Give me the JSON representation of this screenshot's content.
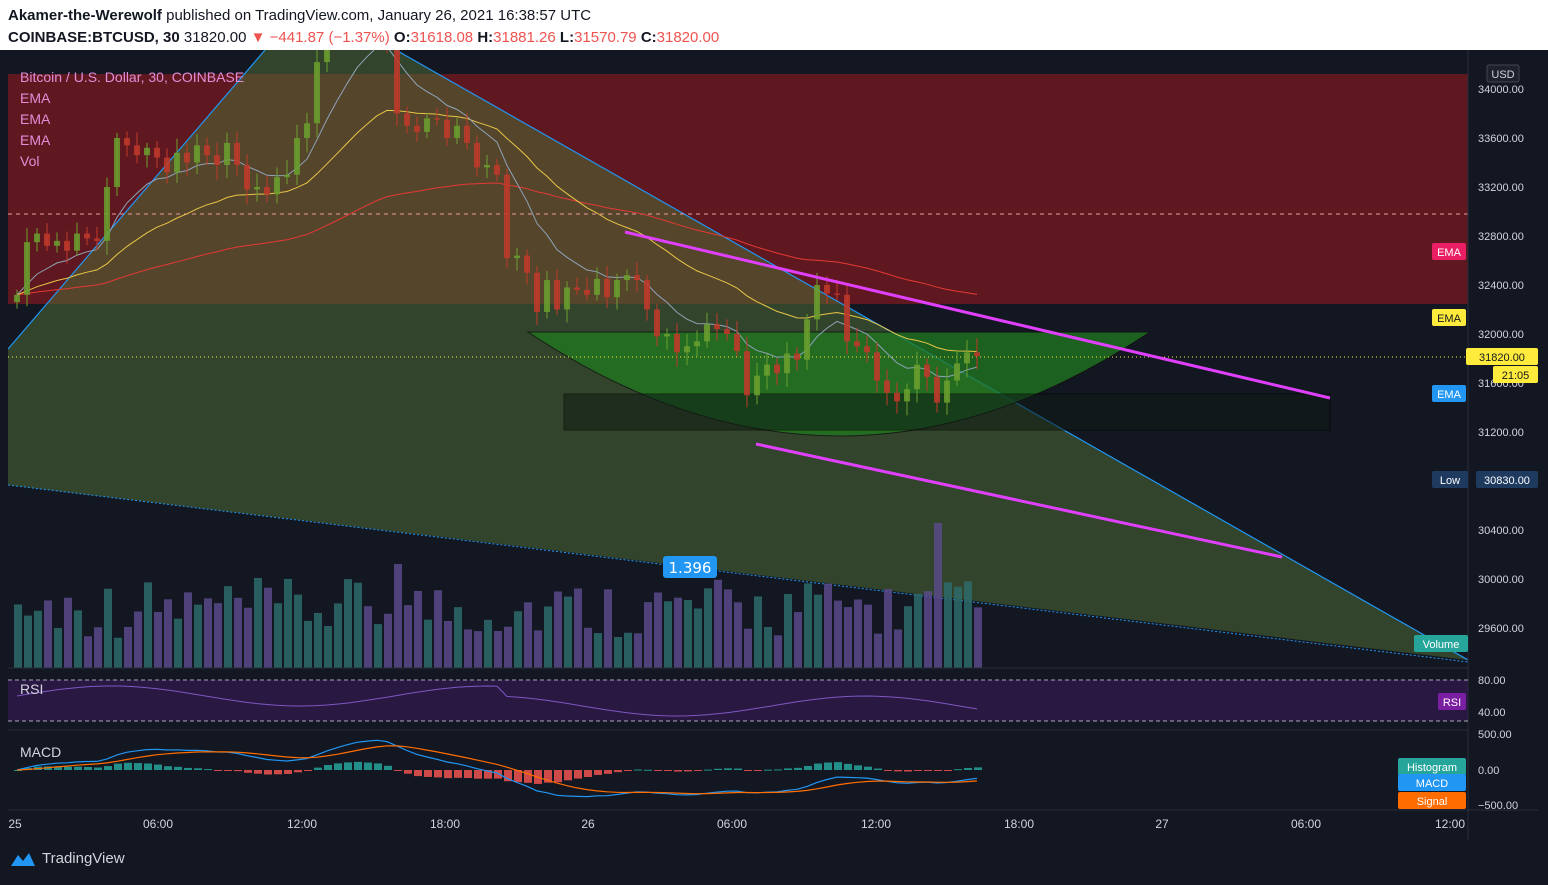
{
  "header": {
    "author": "Akamer-the-Werewolf",
    "published_text": "published on TradingView.com, January 26, 2021 16:38:57 UTC",
    "symbol": "COINBASE:BTCUSD, 30",
    "last": "31820.00",
    "change": "−441.87 (−1.37%)",
    "o_label": "O:",
    "o": "31618.08",
    "h_label": "H:",
    "h": "31881.26",
    "l_label": "L:",
    "l": "31570.79",
    "c_label": "C:",
    "c": "31820.00"
  },
  "legend": {
    "title": "Bitcoin / U.S. Dollar, 30, COINBASE",
    "ema1": "EMA",
    "ema2": "EMA",
    "ema3": "EMA",
    "vol": "Vol"
  },
  "price_scale": {
    "currency": "USD",
    "ticks": [
      "34000.00",
      "33600.00",
      "33200.00",
      "32800.00",
      "32400.00",
      "32000.00",
      "31600.00",
      "31200.00",
      "30400.00",
      "30000.00",
      "29600.00"
    ],
    "tags": [
      {
        "label": "EMA",
        "color": "#e91e63"
      },
      {
        "label": "EMA",
        "color": "#ffeb3b"
      },
      {
        "label": "31820.00",
        "color": "#ffeb3b"
      },
      {
        "label": "21:05",
        "color": "#ffeb3b"
      },
      {
        "label": "EMA",
        "color": "#2196f3"
      },
      {
        "label": "Low",
        "color": "#1e3a5f"
      },
      {
        "label": "30830.00",
        "color": "#1e3a5f"
      },
      {
        "label": "Volume",
        "color": "#26a69a"
      }
    ],
    "measure_label": "1.396"
  },
  "rsi": {
    "title": "RSI",
    "tag": "RSI",
    "ticks": [
      "80.00",
      "40.00"
    ]
  },
  "macd": {
    "title": "MACD",
    "ticks": [
      "500.00",
      "0.00",
      "−500.00"
    ],
    "tags": [
      {
        "label": "Histogram",
        "color": "#26a69a"
      },
      {
        "label": "MACD",
        "color": "#2196f3"
      },
      {
        "label": "Signal",
        "color": "#ff6d00"
      }
    ]
  },
  "time_axis": [
    "25",
    "06:00",
    "12:00",
    "18:00",
    "26",
    "06:00",
    "12:00",
    "18:00",
    "27",
    "06:00",
    "12:00"
  ],
  "footer": {
    "brand": "TradingView"
  },
  "chart_data": {
    "type": "candlestick",
    "interval": "30",
    "symbol": "COINBASE:BTCUSD",
    "ohlc_last": {
      "open": 31618.08,
      "high": 31881.26,
      "low": 31570.79,
      "close": 31820.0
    },
    "y_range": [
      29400,
      34300
    ],
    "closes": [
      32320,
      32750,
      32820,
      32720,
      32760,
      32680,
      32820,
      32780,
      32760,
      33200,
      33600,
      33540,
      33460,
      33520,
      33440,
      33320,
      33480,
      33400,
      33540,
      33460,
      33380,
      33560,
      33380,
      33180,
      33200,
      33140,
      33280,
      33300,
      33600,
      33720,
      34220,
      34420,
      34500,
      34600,
      34700,
      34620,
      34650,
      34360,
      33800,
      33700,
      33650,
      33760,
      33750,
      33600,
      33700,
      33560,
      33360,
      33380,
      33300,
      32620,
      32640,
      32500,
      32180,
      32440,
      32200,
      32380,
      32360,
      32320,
      32450,
      32300,
      32440,
      32480,
      32440,
      32200,
      31980,
      32000,
      31850,
      31900,
      31940,
      32080,
      32040,
      32000,
      31860,
      31500,
      31660,
      31750,
      31680,
      31840,
      31790,
      32120,
      32400,
      32330,
      32320,
      31940,
      31900,
      31850,
      31620,
      31520,
      31450,
      31550,
      31750,
      31650,
      31440,
      31620,
      31760,
      31850,
      31820
    ],
    "volume_max_label": "",
    "rsi_levels": [
      80,
      40
    ],
    "macd_range": [
      -500,
      500
    ],
    "annotations": [
      "descending trendlines",
      "cup/rounded bottom",
      "support box 31250-31600",
      "red resistance zone 32250-34100"
    ]
  }
}
